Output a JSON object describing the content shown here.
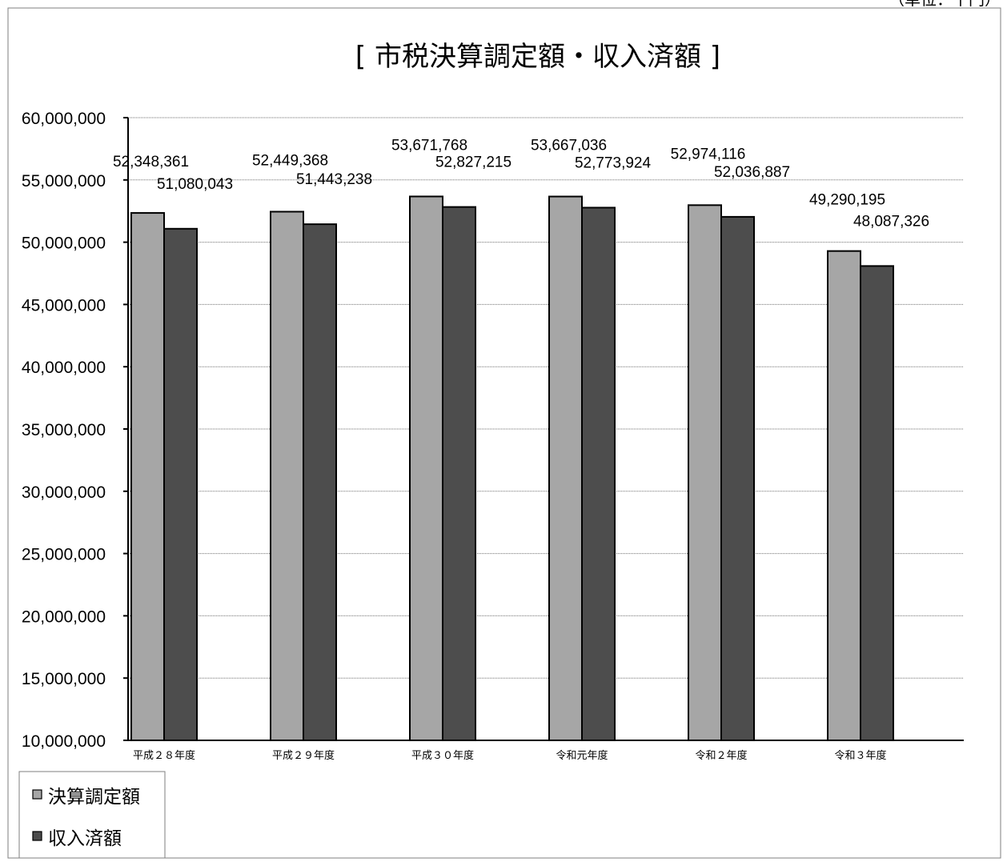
{
  "unit_label": "（単位：千円）",
  "colors": {
    "series_1": "#a6a6a6",
    "series_2": "#4d4d4d",
    "gridline": "#6e6e6e",
    "border": "#7f7f7f"
  },
  "chart_data": {
    "type": "bar",
    "title": "[ 市税決算調定額・収入済額 ]",
    "xlabel": "",
    "ylabel": "",
    "ylim": [
      10000000,
      60000000
    ],
    "y_ticks": [
      10000000,
      15000000,
      20000000,
      25000000,
      30000000,
      35000000,
      40000000,
      45000000,
      50000000,
      55000000,
      60000000
    ],
    "y_tick_labels": [
      "10,000,000",
      "15,000,000",
      "20,000,000",
      "25,000,000",
      "30,000,000",
      "35,000,000",
      "40,000,000",
      "45,000,000",
      "50,000,000",
      "55,000,000",
      "60,000,000"
    ],
    "grid": true,
    "legend_position": "bottom-left",
    "categories": [
      "平成２８年度",
      "平成２９年度",
      "平成３０年度",
      "令和元年度",
      "令和２年度",
      "令和３年度"
    ],
    "series": [
      {
        "name": "決算調定額",
        "values": [
          52348361,
          52449368,
          53671768,
          53667036,
          52974116,
          49290195
        ],
        "labels": [
          "52,348,361",
          "52,449,368",
          "53,671,768",
          "53,667,036",
          "52,974,116",
          "49,290,195"
        ]
      },
      {
        "name": "収入済額",
        "values": [
          51080043,
          51443238,
          52827215,
          52773924,
          52036887,
          48087326
        ],
        "labels": [
          "51,080,043",
          "51,443,238",
          "52,827,215",
          "52,773,924",
          "52,036,887",
          "48,087,326"
        ]
      }
    ]
  }
}
